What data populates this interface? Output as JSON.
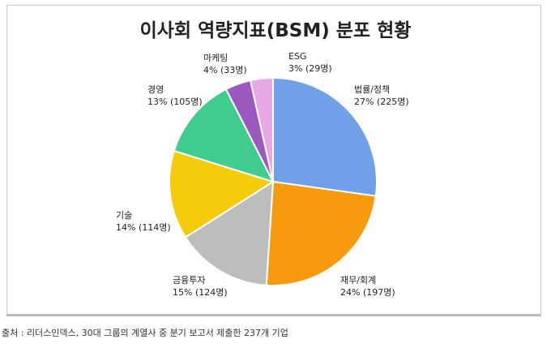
{
  "chart_data": {
    "type": "pie",
    "title": "이사회 역량지표(BSM) 분포 현황",
    "slices": [
      {
        "label": "법률/정책",
        "percent": "27%",
        "count": "225명",
        "value": 225,
        "color": "#6fa0e8"
      },
      {
        "label": "재무/회계",
        "percent": "24%",
        "count": "197명",
        "value": 197,
        "color": "#f79a0e"
      },
      {
        "label": "금융투자",
        "percent": "15%",
        "count": "124명",
        "value": 124,
        "color": "#bdbdbd"
      },
      {
        "label": "기술",
        "percent": "14%",
        "count": "114명",
        "value": 114,
        "color": "#f5cc0a"
      },
      {
        "label": "경영",
        "percent": "13%",
        "count": "105명",
        "value": 105,
        "color": "#3fcc8e"
      },
      {
        "label": "마케팅",
        "percent": "4%",
        "count": "33명",
        "value": 33,
        "color": "#9b59c0"
      },
      {
        "label": "ESG",
        "percent": "3%",
        "count": "29명",
        "value": 29,
        "color": "#e8a8e6"
      }
    ],
    "start": "12 o'clock, clockwise"
  },
  "source": "출처 : 리더스인덱스, 30대 그룹의 계열사 중 분기 보고서 제출한 237개 기업"
}
